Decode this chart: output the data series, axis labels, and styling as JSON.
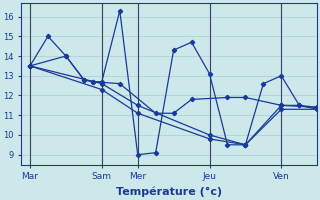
{
  "bg": "#cce8ea",
  "grid_color": "#aacccc",
  "lc": "#1a3a9a",
  "xlabel": "Température (°c)",
  "xlabel_fontsize": 8,
  "xlabel_fontweight": "bold",
  "ylim": [
    8.5,
    16.7
  ],
  "yticks": [
    9,
    10,
    11,
    12,
    13,
    14,
    15,
    16
  ],
  "ytick_fontsize": 6,
  "xtick_fontsize": 6.5,
  "xtick_pos": [
    0,
    8,
    12,
    20,
    28
  ],
  "xtick_labels": [
    "Mar",
    "Sam",
    "Mer",
    "Jeu",
    "Ven"
  ],
  "vlines": [
    0,
    8,
    12,
    20,
    28
  ],
  "xlim": [
    -1,
    32
  ],
  "s1x": [
    0,
    2,
    4,
    6,
    7,
    8,
    10,
    12,
    14,
    16,
    18,
    20,
    22,
    24,
    26,
    28,
    30,
    32
  ],
  "s1y": [
    13.5,
    15.0,
    14.0,
    12.8,
    12.7,
    12.7,
    16.3,
    9.0,
    9.1,
    14.3,
    14.7,
    13.1,
    9.5,
    9.5,
    12.6,
    13.0,
    11.5,
    11.3
  ],
  "s2x": [
    0,
    4,
    6,
    7,
    10,
    14,
    16,
    18,
    22,
    24,
    28,
    30,
    32
  ],
  "s2y": [
    13.5,
    14.0,
    12.8,
    12.7,
    12.6,
    11.1,
    11.1,
    11.8,
    11.9,
    11.9,
    11.5,
    11.5,
    11.4
  ],
  "s3x": [
    0,
    8,
    12,
    20,
    24,
    28,
    32
  ],
  "s3y": [
    13.5,
    12.6,
    11.5,
    10.0,
    9.5,
    11.5,
    11.4
  ],
  "s4x": [
    0,
    8,
    12,
    20,
    24,
    28,
    32
  ],
  "s4y": [
    13.5,
    12.3,
    11.1,
    9.8,
    9.5,
    11.3,
    11.3
  ]
}
